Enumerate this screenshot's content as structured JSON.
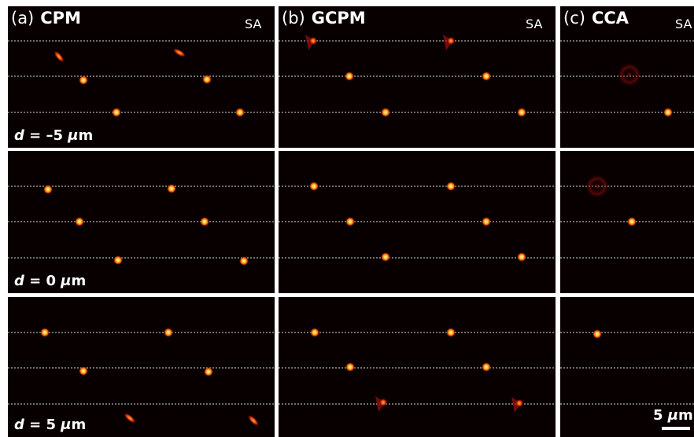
{
  "columns": [
    {
      "letter": "(a)",
      "method": "CPM",
      "axis_label": "SA"
    },
    {
      "letter": "(b)",
      "method": "GCPM",
      "axis_label": "SA"
    },
    {
      "letter": "(c)",
      "method": "CCA",
      "axis_label": "SA"
    }
  ],
  "rows": [
    {
      "symbol": "d",
      "equals": " = –5 ",
      "unit_prefix": "μ",
      "unit": "m"
    },
    {
      "symbol": "d",
      "equals": " = 0 ",
      "unit_prefix": "μ",
      "unit": "m"
    },
    {
      "symbol": "d",
      "equals": " = 5 ",
      "unit_prefix": "μ",
      "unit": "m"
    }
  ],
  "scale_bar": {
    "number": "5 ",
    "unit_prefix": "μ",
    "unit": "m"
  }
}
